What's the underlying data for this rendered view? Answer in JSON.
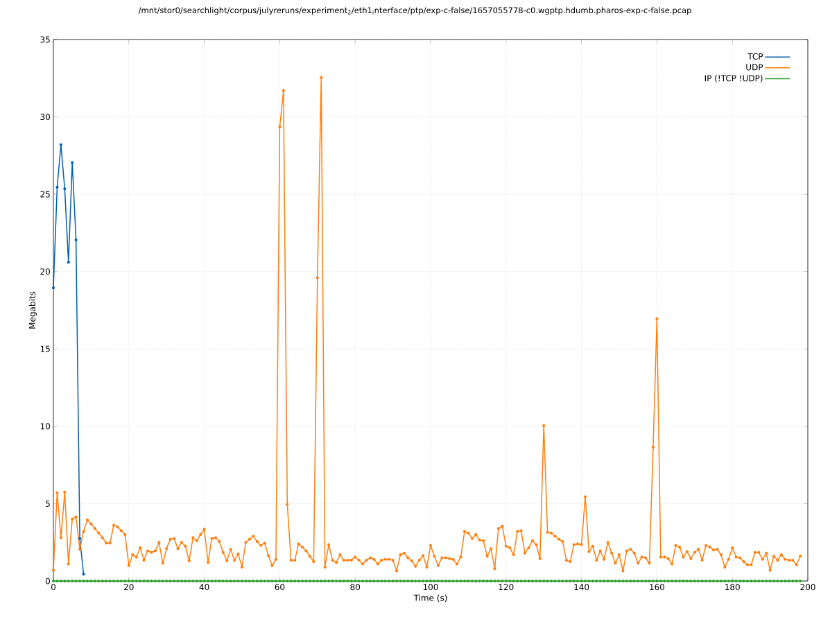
{
  "chart_data": {
    "type": "line",
    "title": "/mnt/stor0/searchlight/corpus/julyreruns/experiment$_{2}$/eth1$_{i}$nterface/ptp/exp-c-false/1657055778-c0.wgptp.hdumb.pharos-exp-c-false.pcap",
    "xlabel": "Time (s)",
    "ylabel": "Megabits",
    "x": [
      0,
      1,
      2,
      3,
      4,
      5,
      6,
      7,
      8,
      9,
      10,
      11,
      12,
      13,
      14,
      15,
      16,
      17,
      18,
      19,
      20,
      21,
      22,
      23,
      24,
      25,
      26,
      27,
      28,
      29,
      30,
      31,
      32,
      33,
      34,
      35,
      36,
      37,
      38,
      39,
      40,
      41,
      42,
      43,
      44,
      45,
      46,
      47,
      48,
      49,
      50,
      51,
      52,
      53,
      54,
      55,
      56,
      57,
      58,
      59,
      60,
      61,
      62,
      63,
      64,
      65,
      66,
      67,
      68,
      69,
      70,
      71,
      72,
      73,
      74,
      75,
      76,
      77,
      78,
      79,
      80,
      81,
      82,
      83,
      84,
      85,
      86,
      87,
      88,
      89,
      90,
      91,
      92,
      93,
      94,
      95,
      96,
      97,
      98,
      99,
      100,
      101,
      102,
      103,
      104,
      105,
      106,
      107,
      108,
      109,
      110,
      111,
      112,
      113,
      114,
      115,
      116,
      117,
      118,
      119,
      120,
      121,
      122,
      123,
      124,
      125,
      126,
      127,
      128,
      129,
      130,
      131,
      132,
      133,
      134,
      135,
      136,
      137,
      138,
      139,
      140,
      141,
      142,
      143,
      144,
      145,
      146,
      147,
      148,
      149,
      150,
      151,
      152,
      153,
      154,
      155,
      156,
      157,
      158,
      159,
      160,
      161,
      162,
      163,
      164,
      165,
      166,
      167,
      168,
      169,
      170,
      171,
      172,
      173,
      174,
      175,
      176,
      177,
      178,
      179,
      180,
      181,
      182,
      183,
      184,
      185,
      186,
      187,
      188,
      189,
      190,
      191,
      192,
      193,
      194,
      195,
      196,
      197,
      198
    ],
    "series": [
      {
        "name": "TCP",
        "color": "#0060ad",
        "x": [
          0,
          1,
          2,
          3,
          4,
          5,
          6,
          7,
          8
        ],
        "values": [
          18.95,
          25.45,
          28.2,
          25.35,
          20.6,
          27.05,
          22.05,
          2.75,
          0.45
        ]
      },
      {
        "name": "UDP",
        "color": "#ff7f0e",
        "values": [
          0.7,
          5.7,
          2.8,
          5.75,
          1.1,
          4.0,
          4.15,
          2.05,
          3.2,
          3.95,
          3.7,
          3.4,
          3.1,
          2.8,
          2.45,
          2.45,
          3.6,
          3.5,
          3.25,
          3.0,
          1.0,
          1.7,
          1.55,
          2.15,
          1.35,
          1.95,
          1.85,
          1.95,
          2.5,
          1.15,
          2.1,
          2.7,
          2.75,
          2.1,
          2.5,
          2.25,
          1.3,
          2.8,
          2.6,
          3.0,
          3.35,
          1.2,
          2.75,
          2.8,
          2.55,
          1.85,
          1.3,
          2.05,
          1.35,
          1.75,
          0.9,
          2.5,
          2.7,
          2.9,
          2.55,
          2.3,
          2.45,
          1.65,
          1.0,
          1.4,
          29.35,
          31.7,
          4.95,
          1.35,
          1.35,
          2.4,
          2.2,
          1.95,
          1.6,
          1.25,
          19.6,
          32.55,
          0.9,
          2.35,
          1.35,
          1.2,
          1.7,
          1.35,
          1.35,
          1.35,
          1.55,
          1.35,
          1.1,
          1.35,
          1.5,
          1.4,
          1.1,
          1.35,
          1.4,
          1.4,
          1.35,
          0.65,
          1.7,
          1.8,
          1.5,
          1.3,
          0.95,
          1.35,
          1.65,
          0.9,
          2.3,
          1.6,
          1.0,
          1.5,
          1.5,
          1.45,
          1.4,
          1.1,
          1.55,
          3.2,
          3.1,
          2.75,
          3.0,
          2.65,
          2.6,
          1.6,
          2.1,
          0.8,
          3.4,
          3.55,
          2.25,
          2.15,
          1.7,
          3.2,
          3.25,
          1.8,
          2.15,
          2.6,
          2.35,
          1.45,
          10.05,
          3.15,
          3.1,
          2.9,
          2.7,
          2.55,
          1.35,
          1.25,
          2.35,
          2.4,
          2.35,
          5.45,
          1.9,
          2.25,
          1.35,
          1.95,
          1.4,
          2.5,
          1.8,
          1.15,
          1.7,
          0.65,
          1.95,
          2.05,
          1.8,
          1.15,
          1.55,
          1.5,
          1.15,
          8.65,
          16.95,
          1.55,
          1.55,
          1.45,
          1.1,
          2.3,
          2.2,
          1.55,
          1.9,
          1.45,
          1.85,
          2.05,
          1.35,
          2.3,
          2.2,
          2.0,
          2.05,
          1.7,
          0.9,
          1.4,
          2.15,
          1.55,
          1.5,
          1.25,
          1.05,
          1.05,
          1.85,
          1.85,
          1.4,
          1.8,
          0.7,
          1.6,
          1.35,
          1.7,
          1.4,
          1.35,
          1.35,
          1.05,
          1.6
        ]
      },
      {
        "name": "IP (!TCP  !UDP)",
        "color": "#2ca02c",
        "values": [
          0,
          0,
          0,
          0,
          0,
          0,
          0,
          0,
          0,
          0,
          0,
          0,
          0,
          0,
          0,
          0,
          0,
          0,
          0,
          0,
          0,
          0,
          0,
          0,
          0,
          0,
          0,
          0,
          0,
          0,
          0,
          0,
          0,
          0,
          0,
          0,
          0,
          0,
          0,
          0,
          0,
          0,
          0,
          0,
          0,
          0,
          0,
          0,
          0,
          0,
          0,
          0,
          0,
          0,
          0,
          0,
          0,
          0,
          0,
          0,
          0,
          0,
          0,
          0,
          0,
          0,
          0,
          0,
          0,
          0,
          0,
          0,
          0,
          0,
          0,
          0,
          0,
          0,
          0,
          0,
          0,
          0,
          0,
          0,
          0,
          0,
          0,
          0,
          0,
          0,
          0,
          0,
          0,
          0,
          0,
          0,
          0,
          0,
          0,
          0,
          0,
          0,
          0,
          0,
          0,
          0,
          0,
          0,
          0,
          0,
          0,
          0,
          0,
          0,
          0,
          0,
          0,
          0,
          0,
          0,
          0,
          0,
          0,
          0,
          0,
          0,
          0,
          0,
          0,
          0,
          0,
          0,
          0,
          0,
          0,
          0,
          0,
          0,
          0,
          0,
          0,
          0,
          0,
          0,
          0,
          0,
          0,
          0,
          0,
          0,
          0,
          0,
          0,
          0,
          0,
          0,
          0,
          0,
          0,
          0,
          0,
          0,
          0,
          0,
          0,
          0,
          0,
          0,
          0,
          0,
          0,
          0,
          0,
          0,
          0,
          0,
          0,
          0,
          0,
          0,
          0,
          0,
          0,
          0,
          0,
          0,
          0,
          0,
          0,
          0,
          0,
          0,
          0,
          0,
          0,
          0,
          0,
          0,
          0
        ]
      }
    ],
    "xlim": [
      0,
      200
    ],
    "xticks": [
      0,
      20,
      40,
      60,
      80,
      100,
      120,
      140,
      160,
      180,
      200
    ],
    "ylim": [
      0,
      35
    ],
    "yticks": [
      0,
      5,
      10,
      15,
      20,
      25,
      30,
      35
    ],
    "grid": true,
    "legend": "top right",
    "marker": "circle",
    "line_style": "solid"
  }
}
